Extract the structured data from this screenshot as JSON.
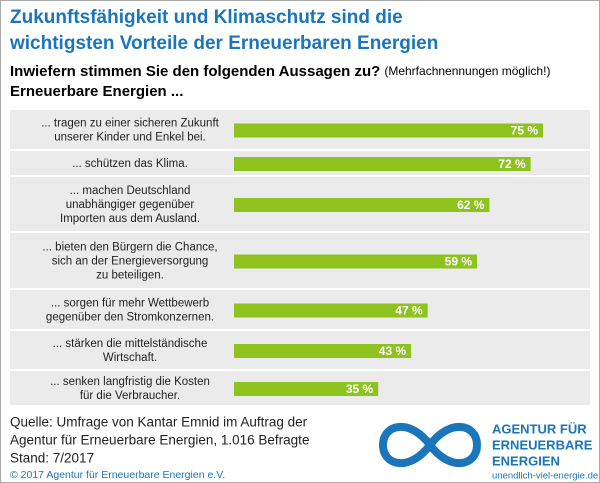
{
  "chart_data": {
    "type": "hbar",
    "title": [
      "Zukunftsfähigkeit und Klimaschutz sind die",
      "wichtigsten Vorteile der Erneuerbaren Energien"
    ],
    "subtitle": "Inwiefern stimmen Sie den folgenden Aussagen zu?",
    "subtitle_note": "(Mehrfachnennungen möglich!)",
    "lead": "Erneuerbare Energien ...",
    "categories": [
      [
        "... tragen zu einer sicheren Zukunft",
        "unserer Kinder und Enkel bei."
      ],
      [
        "... schützen das Klima."
      ],
      [
        "... machen Deutschland",
        "unabhängiger gegenüber",
        "Importen aus dem Ausland."
      ],
      [
        "... bieten den Bürgern die Chance,",
        "sich an der Energieversorgung",
        "zu beteiligen."
      ],
      [
        "... sorgen für mehr Wettbewerb",
        "gegenüber den Stromkonzernen."
      ],
      [
        "... stärken die mittelständische",
        "Wirtschaft."
      ],
      [
        "... senken langfristig die Kosten",
        "für die Verbraucher."
      ]
    ],
    "values": [
      75,
      72,
      62,
      59,
      47,
      43,
      35
    ],
    "value_labels": [
      "75 %",
      "72 %",
      "62 %",
      "59 %",
      "47 %",
      "43 %",
      "35 %"
    ],
    "color": "#8dc21f",
    "source": [
      "Quelle: Umfrage von Kantar Emnid im Auftrag der",
      "Agentur für Erneuerbare Energien, 1.016 Befragte",
      "Stand: 7/2017"
    ],
    "copyright": "© 2017 Agentur für Erneuerbare Energien e.V.",
    "logo_lines": [
      "AGENTUR FÜR",
      "ERNEUERBARE",
      "ENERGIEN"
    ],
    "logo_url": "unendlich-viel-energie.de"
  }
}
